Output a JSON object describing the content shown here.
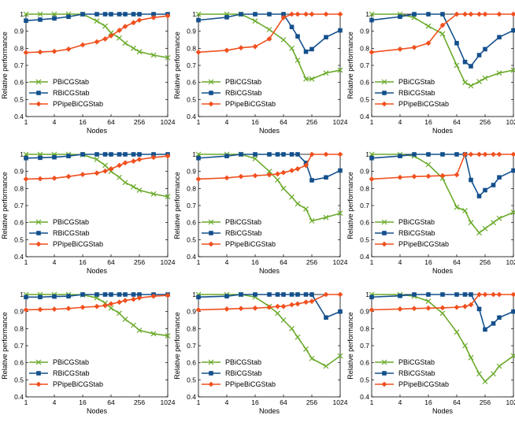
{
  "colors": {
    "pbicg": "#6aaa2a",
    "rbicg": "#14508c",
    "ppipe": "#f0501e"
  },
  "chart_data": [
    {
      "type": "line",
      "xlabel": "Nodes",
      "ylabel": "Relative performance",
      "x": [
        1,
        2,
        4,
        8,
        16,
        32,
        48,
        64,
        96,
        128,
        192,
        256,
        512,
        1024
      ],
      "xticks": [
        1,
        4,
        16,
        64,
        256,
        1024
      ],
      "xtick_labels": [
        "1",
        "4",
        "16",
        "64",
        "256",
        "1024"
      ],
      "ylim": [
        0.4,
        1.0
      ],
      "yticks": [
        0.4,
        0.5,
        0.6,
        0.7,
        0.8,
        0.9,
        1
      ],
      "ytick_labels": [
        "0.4",
        "0.5",
        "0.6",
        "0.7",
        "0.8",
        "0.9",
        "1"
      ],
      "legend": "bottom-left",
      "series": [
        {
          "name": "PBiCGStab",
          "marker": "x",
          "values": [
            1,
            1,
            1,
            1,
            1,
            0.96,
            0.93,
            0.89,
            0.86,
            0.83,
            0.8,
            0.78,
            0.76,
            0.745
          ]
        },
        {
          "name": "RBiCGStab",
          "marker": "square",
          "values": [
            0.962,
            0.968,
            0.975,
            0.985,
            1,
            1,
            1,
            1,
            1,
            1,
            1,
            1,
            1,
            1
          ]
        },
        {
          "name": "PPipeBiCGStab",
          "marker": "diamond",
          "values": [
            0.775,
            0.778,
            0.782,
            0.795,
            0.82,
            0.838,
            0.855,
            0.873,
            0.905,
            0.928,
            0.95,
            0.965,
            0.98,
            0.99
          ]
        }
      ]
    },
    {
      "type": "line",
      "xlabel": "Nodes",
      "ylabel": "Relative performance",
      "x": [
        1,
        4,
        8,
        16,
        32,
        64,
        96,
        128,
        192,
        256,
        512,
        1024
      ],
      "xticks": [
        1,
        4,
        16,
        64,
        256,
        1024
      ],
      "xtick_labels": [
        "1",
        "4",
        "16",
        "64",
        "256",
        "1024"
      ],
      "ylim": [
        0.4,
        1.0
      ],
      "yticks": [
        0.4,
        0.5,
        0.6,
        0.7,
        0.8,
        0.9,
        1
      ],
      "ytick_labels": [
        "0.4",
        "0.5",
        "0.6",
        "0.7",
        "0.8",
        "0.9",
        "1"
      ],
      "legend": "bottom-left",
      "series": [
        {
          "name": "PBiCGStab",
          "marker": "x",
          "values": [
            1,
            1,
            1,
            0.96,
            0.91,
            0.85,
            0.8,
            0.73,
            0.62,
            0.62,
            0.655,
            0.672
          ]
        },
        {
          "name": "RBiCGStab",
          "marker": "square",
          "values": [
            0.965,
            0.982,
            1,
            1,
            1,
            1,
            0.925,
            0.87,
            0.78,
            0.795,
            0.865,
            0.905
          ]
        },
        {
          "name": "PPipeBiCGStab",
          "marker": "diamond",
          "values": [
            0.777,
            0.788,
            0.803,
            0.81,
            0.855,
            0.98,
            1,
            1,
            1,
            1,
            1,
            1
          ]
        }
      ]
    },
    {
      "type": "line",
      "xlabel": "Nodes",
      "ylabel": "Relative performance",
      "x": [
        1,
        4,
        8,
        16,
        32,
        64,
        96,
        128,
        192,
        256,
        512,
        1024
      ],
      "xticks": [
        1,
        4,
        16,
        64,
        256,
        1024
      ],
      "xtick_labels": [
        "1",
        "4",
        "16",
        "64",
        "256",
        "1024"
      ],
      "ylim": [
        0.4,
        1.0
      ],
      "yticks": [
        0.4,
        0.5,
        0.6,
        0.7,
        0.8,
        0.9,
        1
      ],
      "ytick_labels": [
        "0.4",
        "0.5",
        "0.6",
        "0.7",
        "0.8",
        "0.9",
        "1"
      ],
      "legend": "bottom-left",
      "series": [
        {
          "name": "PBiCGStab",
          "marker": "x",
          "values": [
            1,
            1,
            0.98,
            0.93,
            0.885,
            0.7,
            0.6,
            0.58,
            0.605,
            0.625,
            0.655,
            0.672
          ]
        },
        {
          "name": "RBiCGStab",
          "marker": "square",
          "values": [
            0.965,
            0.985,
            1,
            1,
            1,
            0.83,
            0.72,
            0.695,
            0.76,
            0.795,
            0.865,
            0.905
          ]
        },
        {
          "name": "PPipeBiCGStab",
          "marker": "diamond",
          "values": [
            0.777,
            0.795,
            0.805,
            0.83,
            0.935,
            1,
            1,
            1,
            1,
            1,
            1,
            1
          ]
        }
      ]
    },
    {
      "type": "line",
      "xlabel": "Nodes",
      "ylabel": "Relative performance",
      "x": [
        1,
        2,
        4,
        8,
        16,
        32,
        48,
        64,
        96,
        128,
        192,
        256,
        512,
        1024
      ],
      "xticks": [
        1,
        4,
        16,
        64,
        256,
        1024
      ],
      "xtick_labels": [
        "1",
        "4",
        "16",
        "64",
        "256",
        "1024"
      ],
      "ylim": [
        0.4,
        1.0
      ],
      "yticks": [
        0.4,
        0.5,
        0.6,
        0.7,
        0.8,
        0.9,
        1
      ],
      "ytick_labels": [
        "0.4",
        "0.5",
        "0.6",
        "0.7",
        "0.8",
        "0.9",
        "1"
      ],
      "legend": "bottom-left",
      "series": [
        {
          "name": "PBiCGStab",
          "marker": "x",
          "values": [
            1,
            1,
            1,
            1,
            0.998,
            0.97,
            0.935,
            0.9,
            0.865,
            0.835,
            0.81,
            0.79,
            0.768,
            0.752
          ]
        },
        {
          "name": "RBiCGStab",
          "marker": "square",
          "values": [
            0.978,
            0.98,
            0.983,
            0.99,
            1,
            1,
            1,
            1,
            1,
            1,
            1,
            1,
            1,
            1
          ]
        },
        {
          "name": "PPipeBiCGStab",
          "marker": "diamond",
          "values": [
            0.855,
            0.857,
            0.86,
            0.87,
            0.882,
            0.89,
            0.902,
            0.915,
            0.935,
            0.95,
            0.96,
            0.97,
            0.982,
            0.99
          ]
        }
      ]
    },
    {
      "type": "line",
      "xlabel": "Nodes",
      "ylabel": "Relative performance",
      "x": [
        1,
        4,
        8,
        16,
        32,
        48,
        64,
        96,
        128,
        192,
        256,
        512,
        1024
      ],
      "xticks": [
        1,
        4,
        16,
        64,
        256,
        1024
      ],
      "xtick_labels": [
        "1",
        "4",
        "16",
        "64",
        "256",
        "1024"
      ],
      "ylim": [
        0.4,
        1.0
      ],
      "yticks": [
        0.4,
        0.5,
        0.6,
        0.7,
        0.8,
        0.9,
        1
      ],
      "ytick_labels": [
        "0.4",
        "0.5",
        "0.6",
        "0.7",
        "0.8",
        "0.9",
        "1"
      ],
      "legend": "bottom-left",
      "series": [
        {
          "name": "PBiCGStab",
          "marker": "x",
          "values": [
            1,
            1,
            1,
            0.975,
            0.9,
            0.85,
            0.8,
            0.75,
            0.71,
            0.68,
            0.61,
            0.63,
            0.655
          ]
        },
        {
          "name": "RBiCGStab",
          "marker": "square",
          "values": [
            0.978,
            0.99,
            1,
            1,
            1,
            1,
            1,
            1,
            1,
            0.95,
            0.848,
            0.865,
            0.905
          ]
        },
        {
          "name": "PPipeBiCGStab",
          "marker": "diamond",
          "values": [
            0.855,
            0.862,
            0.87,
            0.875,
            0.88,
            0.885,
            0.893,
            0.905,
            0.915,
            0.935,
            1,
            1,
            1
          ]
        }
      ]
    },
    {
      "type": "line",
      "xlabel": "Nodes",
      "ylabel": "Relative performance",
      "x": [
        1,
        4,
        8,
        16,
        32,
        64,
        96,
        128,
        192,
        256,
        384,
        512,
        1024
      ],
      "xticks": [
        1,
        4,
        16,
        64,
        256,
        1024
      ],
      "xtick_labels": [
        "1",
        "4",
        "16",
        "64",
        "256",
        "1024"
      ],
      "ylim": [
        0.4,
        1.0
      ],
      "yticks": [
        0.4,
        0.5,
        0.6,
        0.7,
        0.8,
        0.9,
        1
      ],
      "ytick_labels": [
        "0.4",
        "0.5",
        "0.6",
        "0.7",
        "0.8",
        "0.9",
        "1"
      ],
      "legend": "bottom-left",
      "series": [
        {
          "name": "PBiCGStab",
          "marker": "x",
          "values": [
            1,
            1,
            0.99,
            0.94,
            0.86,
            0.69,
            0.67,
            0.6,
            0.54,
            0.565,
            0.6,
            0.625,
            0.66
          ]
        },
        {
          "name": "RBiCGStab",
          "marker": "square",
          "values": [
            0.978,
            0.99,
            1,
            1,
            1,
            1,
            1,
            0.85,
            0.755,
            0.79,
            0.82,
            0.865,
            0.905
          ]
        },
        {
          "name": "PPipeBiCGStab",
          "marker": "diamond",
          "values": [
            0.855,
            0.865,
            0.87,
            0.872,
            0.875,
            0.88,
            1,
            1,
            1,
            1,
            1,
            1,
            1
          ]
        }
      ]
    },
    {
      "type": "line",
      "xlabel": "Nodes",
      "ylabel": "Relative performance",
      "x": [
        1,
        2,
        4,
        8,
        16,
        32,
        48,
        64,
        96,
        128,
        192,
        256,
        512,
        1024
      ],
      "xticks": [
        1,
        4,
        16,
        64,
        256,
        1024
      ],
      "xtick_labels": [
        "1",
        "4",
        "16",
        "64",
        "256",
        "1024"
      ],
      "ylim": [
        0.4,
        1.0
      ],
      "yticks": [
        0.4,
        0.5,
        0.6,
        0.7,
        0.8,
        0.9,
        1
      ],
      "ytick_labels": [
        "0.4",
        "0.5",
        "0.6",
        "0.7",
        "0.8",
        "0.9",
        "1"
      ],
      "legend": "bottom-left",
      "series": [
        {
          "name": "PBiCGStab",
          "marker": "x",
          "values": [
            1,
            1,
            1,
            1,
            0.998,
            0.98,
            0.95,
            0.92,
            0.89,
            0.855,
            0.82,
            0.79,
            0.77,
            0.758
          ]
        },
        {
          "name": "RBiCGStab",
          "marker": "square",
          "values": [
            0.985,
            0.985,
            0.988,
            0.99,
            1,
            1,
            1,
            1,
            1,
            1,
            1,
            1,
            1,
            1
          ]
        },
        {
          "name": "PPipeBiCGStab",
          "marker": "diamond",
          "values": [
            0.91,
            0.912,
            0.914,
            0.918,
            0.925,
            0.93,
            0.935,
            0.945,
            0.955,
            0.965,
            0.972,
            0.98,
            0.99,
            0.995
          ]
        }
      ]
    },
    {
      "type": "line",
      "xlabel": "Nodes",
      "ylabel": "Relative performance",
      "x": [
        1,
        4,
        8,
        16,
        32,
        48,
        64,
        96,
        128,
        192,
        256,
        512,
        1024
      ],
      "xticks": [
        1,
        4,
        16,
        64,
        256,
        1024
      ],
      "xtick_labels": [
        "1",
        "4",
        "16",
        "64",
        "256",
        "1024"
      ],
      "ylim": [
        0.4,
        1.0
      ],
      "yticks": [
        0.4,
        0.5,
        0.6,
        0.7,
        0.8,
        0.9,
        1
      ],
      "ytick_labels": [
        "0.4",
        "0.5",
        "0.6",
        "0.7",
        "0.8",
        "0.9",
        "1"
      ],
      "legend": "bottom-left",
      "series": [
        {
          "name": "PBiCGStab",
          "marker": "x",
          "values": [
            1,
            1,
            1,
            0.985,
            0.93,
            0.89,
            0.85,
            0.8,
            0.75,
            0.68,
            0.625,
            0.58,
            0.64
          ]
        },
        {
          "name": "RBiCGStab",
          "marker": "square",
          "values": [
            0.985,
            0.99,
            1,
            1,
            1,
            1,
            1,
            1,
            1,
            1,
            1,
            0.865,
            0.9
          ]
        },
        {
          "name": "PPipeBiCGStab",
          "marker": "diamond",
          "values": [
            0.91,
            0.915,
            0.918,
            0.92,
            0.925,
            0.93,
            0.93,
            0.94,
            0.945,
            0.955,
            0.96,
            1,
            1
          ]
        }
      ]
    },
    {
      "type": "line",
      "xlabel": "Nodes",
      "ylabel": "Relative performance",
      "x": [
        1,
        4,
        8,
        16,
        32,
        64,
        96,
        128,
        192,
        256,
        384,
        512,
        1024
      ],
      "xticks": [
        1,
        4,
        16,
        64,
        256,
        1024
      ],
      "xtick_labels": [
        "1",
        "4",
        "16",
        "64",
        "256",
        "1024"
      ],
      "ylim": [
        0.4,
        1.0
      ],
      "yticks": [
        0.4,
        0.5,
        0.6,
        0.7,
        0.8,
        0.9,
        1
      ],
      "ytick_labels": [
        "0.4",
        "0.5",
        "0.6",
        "0.7",
        "0.8",
        "0.9",
        "1"
      ],
      "legend": "bottom-left",
      "series": [
        {
          "name": "PBiCGStab",
          "marker": "x",
          "values": [
            1,
            1,
            0.99,
            0.96,
            0.89,
            0.78,
            0.7,
            0.63,
            0.535,
            0.49,
            0.535,
            0.58,
            0.64
          ]
        },
        {
          "name": "RBiCGStab",
          "marker": "square",
          "values": [
            0.985,
            0.992,
            1,
            1,
            1,
            1,
            1,
            1,
            0.915,
            0.795,
            0.83,
            0.865,
            0.9
          ]
        },
        {
          "name": "PPipeBiCGStab",
          "marker": "diamond",
          "values": [
            0.91,
            0.915,
            0.918,
            0.92,
            0.922,
            0.925,
            0.93,
            0.94,
            1,
            1,
            1,
            1,
            1
          ]
        }
      ]
    }
  ]
}
